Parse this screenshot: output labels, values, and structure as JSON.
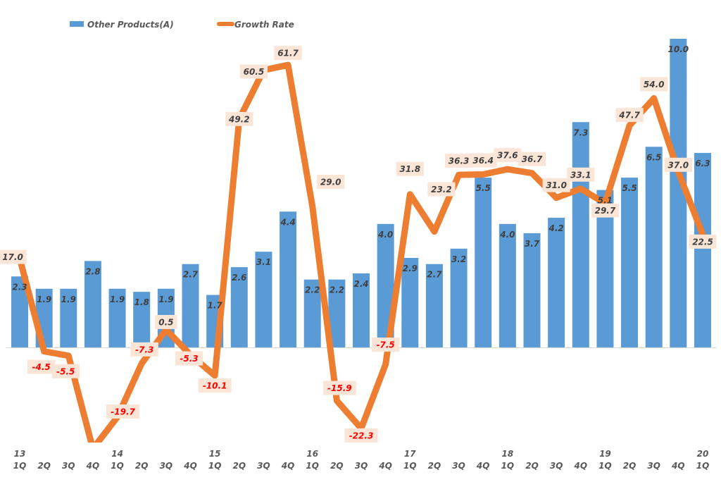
{
  "chart_data": {
    "type": "bar+line",
    "title": "",
    "legend": {
      "placement": "top-left",
      "entries": [
        {
          "name": "Other Products(A)",
          "color": "#5B9BD5",
          "kind": "bar"
        },
        {
          "name": "Growth Rate",
          "color": "#ED7D31",
          "kind": "line"
        }
      ]
    },
    "years": [
      {
        "label": "13",
        "start_index": 0
      },
      {
        "label": "14",
        "start_index": 4
      },
      {
        "label": "15",
        "start_index": 8
      },
      {
        "label": "16",
        "start_index": 12
      },
      {
        "label": "17",
        "start_index": 16
      },
      {
        "label": "18",
        "start_index": 20
      },
      {
        "label": "19",
        "start_index": 24
      },
      {
        "label": "20",
        "start_index": 28
      }
    ],
    "categories": [
      "1Q",
      "2Q",
      "3Q",
      "4Q",
      "1Q",
      "2Q",
      "3Q",
      "4Q",
      "1Q",
      "2Q",
      "3Q",
      "4Q",
      "1Q",
      "2Q",
      "3Q",
      "4Q",
      "1Q",
      "2Q",
      "3Q",
      "4Q",
      "1Q",
      "2Q",
      "3Q",
      "4Q",
      "1Q",
      "2Q",
      "3Q",
      "4Q",
      "1Q"
    ],
    "series": [
      {
        "name": "Other Products(A)",
        "type": "bar",
        "axis": "primary",
        "values": [
          2.3,
          1.9,
          1.9,
          2.8,
          1.9,
          1.8,
          1.9,
          2.7,
          1.7,
          2.6,
          3.1,
          4.4,
          2.2,
          2.2,
          2.4,
          4.0,
          2.9,
          2.7,
          3.2,
          5.5,
          4.0,
          3.7,
          4.2,
          7.3,
          5.1,
          5.5,
          6.5,
          10.0,
          6.3
        ],
        "labels": [
          "2.3",
          "1.9",
          "1.9",
          "2.8",
          "1.9",
          "1.8",
          "1.9",
          "2.7",
          "1.7",
          "2.6",
          "3.1",
          "4.4",
          "2.2",
          "2.2",
          "2.4",
          "4.0",
          "2.9",
          "2.7",
          "3.2",
          "5.5",
          "4.0",
          "3.7",
          "4.2",
          "7.3",
          "5.1",
          "5.5",
          "6.5",
          "10.0",
          "6.3"
        ]
      },
      {
        "name": "Growth Rate",
        "type": "line",
        "axis": "secondary",
        "values": [
          17.0,
          -4.5,
          -5.5,
          -27.0,
          -19.7,
          -7.3,
          0.5,
          -5.3,
          -10.1,
          49.2,
          60.5,
          61.7,
          29.0,
          -15.9,
          -22.3,
          -7.5,
          31.8,
          23.2,
          36.3,
          36.4,
          37.6,
          36.7,
          31.0,
          33.1,
          29.7,
          47.7,
          54.0,
          37.0,
          22.5
        ],
        "labels": [
          "17.0",
          "-4.5",
          "-5.5",
          "",
          "-19.7",
          "-7.3",
          "0.5",
          "-5.3",
          "-10.1",
          "49.2",
          "60.5",
          "61.7",
          "29.0",
          "-15.9",
          "-22.3",
          "-7.5",
          "31.8",
          "23.2",
          "36.3",
          "36.4",
          "37.6",
          "36.7",
          "31.0",
          "33.1",
          "29.7",
          "47.7",
          "54.0",
          "37.0",
          "22.5"
        ]
      }
    ],
    "primary_ylim": [
      0,
      10
    ],
    "secondary_ylim": [
      -25,
      70
    ],
    "grid": false,
    "colors": {
      "bar": "#5B9BD5",
      "line": "#ED7D31",
      "label_bg": "#FBE5D6",
      "label_pos": "#404040",
      "label_neg": "#FF0000",
      "axis_text": "#595959"
    }
  }
}
